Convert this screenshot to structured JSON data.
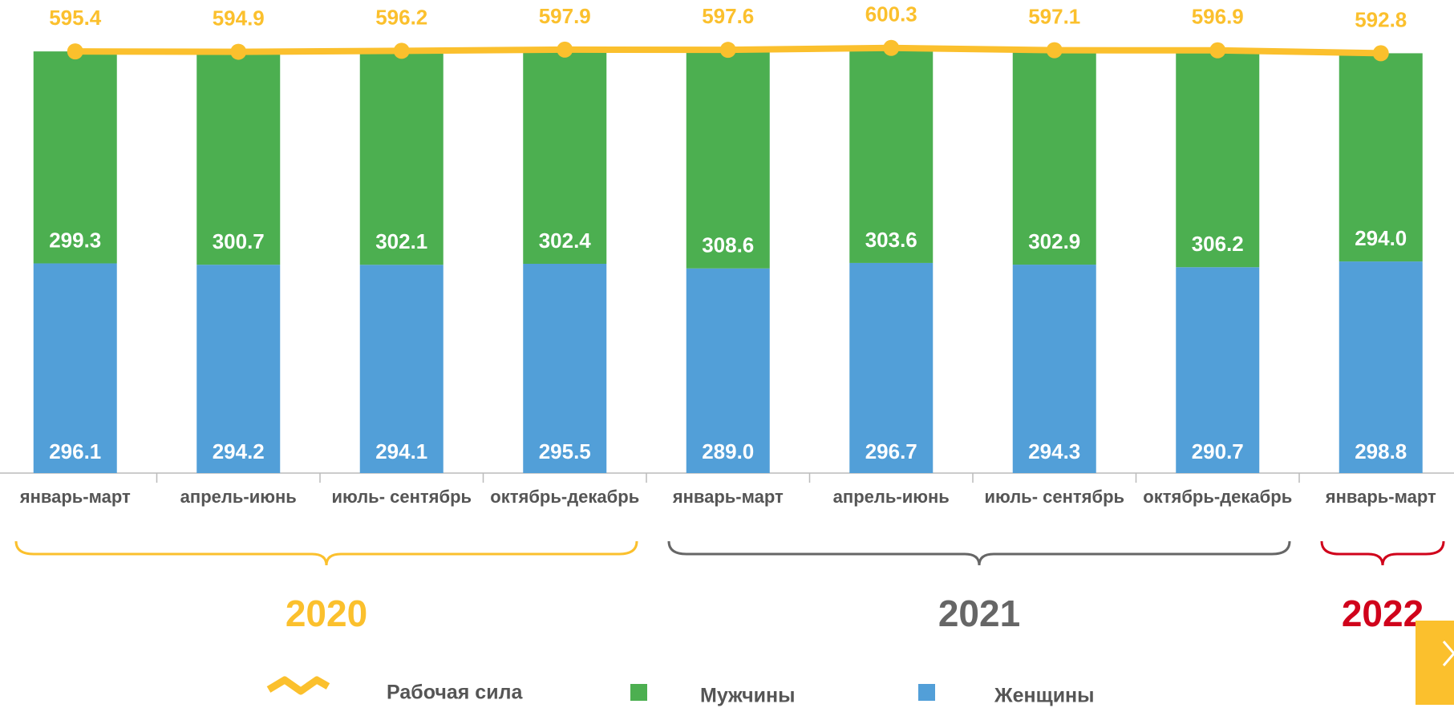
{
  "chart_data": {
    "type": "stacked_bar_line",
    "categories": [
      "январь-март",
      "апрель-июнь",
      "июль- сентябрь",
      "октябрь-декабрь",
      "январь-март",
      "апрель-июнь",
      "июль- сентябрь",
      "октябрь-декабрь",
      "январь-март"
    ],
    "series": [
      {
        "name": "Женщины",
        "color": "#529fd8",
        "values": [
          296.1,
          294.2,
          294.1,
          295.5,
          289.0,
          296.7,
          294.3,
          290.7,
          298.8
        ],
        "value_labels": [
          "296.1",
          "294.2",
          "294.1",
          "295.5",
          "289.0",
          "296.7",
          "294.3",
          "290.7",
          "298.8"
        ]
      },
      {
        "name": "Мужчины",
        "color": "#4caf50",
        "values": [
          299.3,
          300.7,
          302.1,
          302.4,
          308.6,
          303.6,
          302.9,
          306.2,
          294.0
        ],
        "value_labels": [
          "299.3",
          "300.7",
          "302.1",
          "302.4",
          "308.6",
          "303.6",
          "302.9",
          "306.2",
          "294.0"
        ]
      },
      {
        "name": "Рабочая сила",
        "color": "#fbc02d",
        "type": "line",
        "values": [
          595.4,
          594.9,
          596.2,
          597.9,
          597.6,
          600.3,
          597.1,
          596.9,
          592.8
        ]
      }
    ],
    "groups": [
      {
        "label": "2020",
        "color": "#fbc02d",
        "size": 4
      },
      {
        "label": "2021",
        "color": "#666666",
        "size": 4
      },
      {
        "label": "2022",
        "color": "#d0021b",
        "size": 1
      }
    ],
    "ylim": [
      0,
      668
    ]
  }
}
